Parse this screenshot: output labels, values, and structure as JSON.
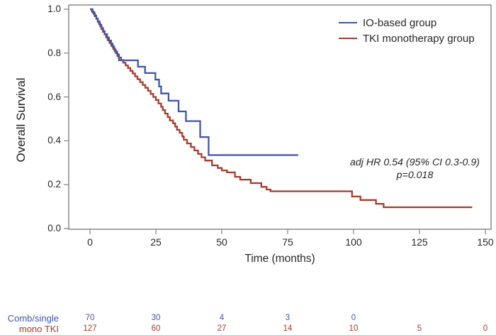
{
  "chart_data": {
    "type": "line",
    "subtype": "kaplan-meier-step",
    "title": "",
    "xlabel": "Time (months)",
    "ylabel": "Overall Survival",
    "xlim": [
      0,
      150
    ],
    "ylim": [
      0.0,
      1.0
    ],
    "xticks": [
      0,
      25,
      50,
      75,
      100,
      125,
      150
    ],
    "yticks": [
      1.0,
      0.8,
      0.6,
      0.4,
      0.2,
      0.0
    ],
    "grid": false,
    "legend_position": "top-right-inside",
    "axis_color": "#8a8a8a",
    "annotation": {
      "line1": "adj HR 0.54 (95% CI 0.3-0.9)",
      "line2": "p=0.018"
    },
    "series": [
      {
        "name": "IO-based group",
        "color": "#3E56A6",
        "end_time": 79,
        "points": [
          [
            0,
            1
          ],
          [
            1,
            0.986
          ],
          [
            1.7,
            0.971
          ],
          [
            2.4,
            0.957
          ],
          [
            3,
            0.943
          ],
          [
            3.7,
            0.929
          ],
          [
            4.3,
            0.914
          ],
          [
            5,
            0.9
          ],
          [
            5.6,
            0.886
          ],
          [
            6.5,
            0.871
          ],
          [
            7.2,
            0.857
          ],
          [
            8,
            0.843
          ],
          [
            8.6,
            0.829
          ],
          [
            9.2,
            0.814
          ],
          [
            9.8,
            0.8
          ],
          [
            10.4,
            0.786
          ],
          [
            11,
            0.767
          ],
          [
            18.2,
            0.738
          ],
          [
            20.9,
            0.709
          ],
          [
            24.8,
            0.679
          ],
          [
            26.2,
            0.648
          ],
          [
            27,
            0.616
          ],
          [
            29.8,
            0.583
          ],
          [
            33.6,
            0.534
          ],
          [
            36.4,
            0.49
          ],
          [
            41.8,
            0.417
          ],
          [
            45,
            0.335
          ]
        ]
      },
      {
        "name": "TKI monotherapy group",
        "color": "#A53B2C",
        "end_time": 145,
        "points": [
          [
            0,
            1
          ],
          [
            0.7,
            0.99
          ],
          [
            1.3,
            0.98
          ],
          [
            1.9,
            0.968
          ],
          [
            2.4,
            0.957
          ],
          [
            2.9,
            0.945
          ],
          [
            3.4,
            0.933
          ],
          [
            3.9,
            0.921
          ],
          [
            4.4,
            0.909
          ],
          [
            4.9,
            0.897
          ],
          [
            5.5,
            0.885
          ],
          [
            6.1,
            0.872
          ],
          [
            6.7,
            0.859
          ],
          [
            7.4,
            0.846
          ],
          [
            8.1,
            0.833
          ],
          [
            8.8,
            0.82
          ],
          [
            9.5,
            0.807
          ],
          [
            10.3,
            0.794
          ],
          [
            11,
            0.78
          ],
          [
            11.8,
            0.768
          ],
          [
            12.6,
            0.756
          ],
          [
            13.5,
            0.744
          ],
          [
            14.4,
            0.732
          ],
          [
            15.3,
            0.719
          ],
          [
            16.2,
            0.707
          ],
          [
            17.1,
            0.694
          ],
          [
            18,
            0.681
          ],
          [
            19,
            0.668
          ],
          [
            20,
            0.655
          ],
          [
            21,
            0.642
          ],
          [
            22,
            0.628
          ],
          [
            23,
            0.614
          ],
          [
            24,
            0.6
          ],
          [
            25,
            0.586
          ],
          [
            26,
            0.57
          ],
          [
            27,
            0.555
          ],
          [
            27.6,
            0.54
          ],
          [
            28.5,
            0.524
          ],
          [
            29.5,
            0.508
          ],
          [
            30.3,
            0.493
          ],
          [
            31.5,
            0.48
          ],
          [
            32.3,
            0.465
          ],
          [
            33,
            0.45
          ],
          [
            34,
            0.437
          ],
          [
            35,
            0.42
          ],
          [
            35.6,
            0.405
          ],
          [
            36.8,
            0.388
          ],
          [
            38.3,
            0.372
          ],
          [
            39.6,
            0.356
          ],
          [
            41,
            0.34
          ],
          [
            42.3,
            0.325
          ],
          [
            43.7,
            0.31
          ],
          [
            46.3,
            0.288
          ],
          [
            48.5,
            0.276
          ],
          [
            50,
            0.265
          ],
          [
            52,
            0.256
          ],
          [
            55,
            0.236
          ],
          [
            57,
            0.223
          ],
          [
            61,
            0.207
          ],
          [
            65,
            0.19
          ],
          [
            67,
            0.178
          ],
          [
            68.5,
            0.17
          ],
          [
            99.4,
            0.146
          ],
          [
            102.6,
            0.13
          ],
          [
            108.5,
            0.113
          ],
          [
            111.4,
            0.097
          ]
        ]
      }
    ],
    "risk_table": {
      "times": [
        0,
        25,
        50,
        75,
        100,
        125,
        150
      ],
      "rows": [
        {
          "label": "Comb/single",
          "color": "#3E56A6",
          "values": [
            70,
            30,
            4,
            3,
            0
          ]
        },
        {
          "label": "mono TKI",
          "color": "#A53B2C",
          "values": [
            127,
            60,
            27,
            14,
            10,
            5,
            0
          ]
        }
      ]
    }
  }
}
